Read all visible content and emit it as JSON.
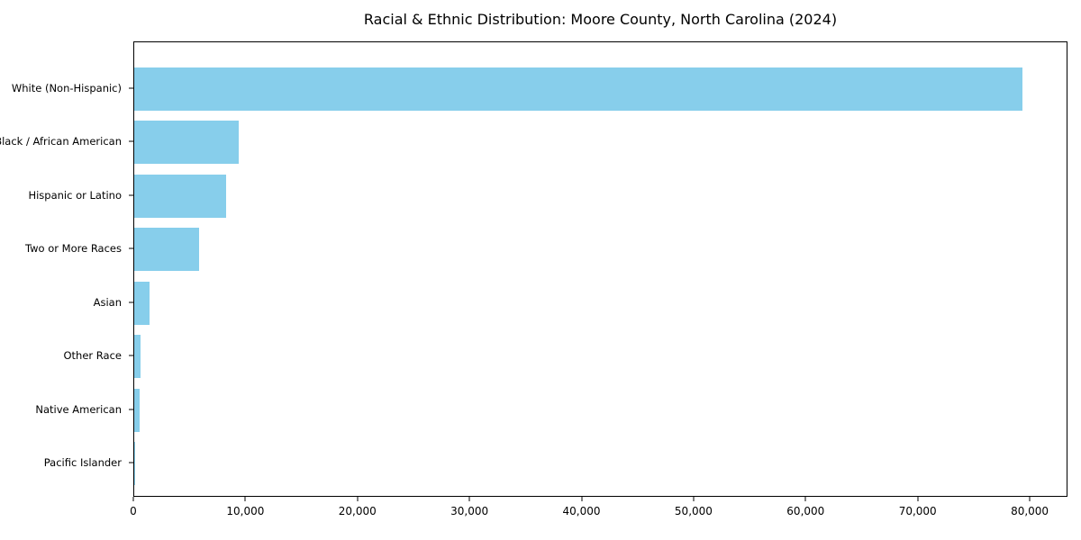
{
  "title": "Racial & Ethnic Distribution: Moore County, North Carolina (2024)",
  "colors": {
    "bar": "#87CEEB",
    "axis": "#000000",
    "text": "#000000",
    "background": "#FFFFFF"
  },
  "chart_data": {
    "type": "bar",
    "orientation": "horizontal",
    "title": "Racial & Ethnic Distribution: Moore County, North Carolina (2024)",
    "categories": [
      "White (Non-Hispanic)",
      "Black / African American",
      "Hispanic or Latino",
      "Two or More Races",
      "Asian",
      "Other Race",
      "Native American",
      "Pacific Islander"
    ],
    "values": [
      79400,
      9380,
      8250,
      5770,
      1340,
      590,
      480,
      60
    ],
    "xlabel": "",
    "ylabel": "",
    "xlim": [
      0,
      83370
    ],
    "xticks": [
      0,
      10000,
      20000,
      30000,
      40000,
      50000,
      60000,
      70000,
      80000
    ],
    "xtick_labels": [
      "0",
      "10,000",
      "20,000",
      "30,000",
      "40,000",
      "50,000",
      "60,000",
      "70,000",
      "80,000"
    ],
    "grid": false,
    "legend": null,
    "bar_color": "#87CEEB"
  }
}
